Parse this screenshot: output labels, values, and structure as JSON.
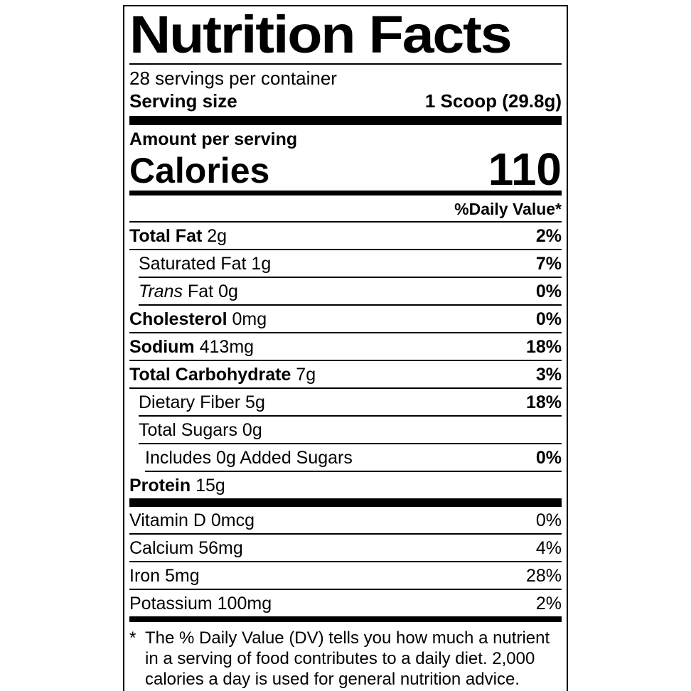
{
  "colors": {
    "text": "#000000",
    "background": "#ffffff",
    "rule": "#000000"
  },
  "label": {
    "title": "Nutrition Facts",
    "servings_per_container": "28 servings per container",
    "serving_size": {
      "label": "Serving size",
      "value": "1 Scoop (29.8g)"
    },
    "amount_per_serving": "Amount per serving",
    "calories": {
      "label": "Calories",
      "value": "110"
    },
    "daily_value_header": "%Daily Value*",
    "nutrients": [
      {
        "bold": "Total Fat",
        "italic": "",
        "regular": " 2g",
        "dv": "2%"
      },
      {
        "bold": "",
        "italic": "",
        "regular": "Saturated Fat 1g",
        "dv": "7%"
      },
      {
        "bold": "",
        "italic": "Trans",
        "regular": " Fat 0g",
        "dv": "0%"
      },
      {
        "bold": "Cholesterol",
        "italic": "",
        "regular": " 0mg",
        "dv": "0%"
      },
      {
        "bold": "Sodium",
        "italic": "",
        "regular": " 413mg",
        "dv": "18%"
      },
      {
        "bold": "Total Carbohydrate",
        "italic": "",
        "regular": " 7g",
        "dv": "3%"
      },
      {
        "bold": "",
        "italic": "",
        "regular": "Dietary Fiber 5g",
        "dv": "18%"
      },
      {
        "bold": "",
        "italic": "",
        "regular": "Total Sugars 0g",
        "dv": ""
      },
      {
        "bold": "",
        "italic": "",
        "regular": "Includes 0g Added Sugars",
        "dv": "0%"
      },
      {
        "bold": "Protein",
        "italic": "",
        "regular": " 15g",
        "dv": ""
      }
    ],
    "micronutrients": [
      {
        "name": "Vitamin D 0mcg",
        "dv": "0%"
      },
      {
        "name": "Calcium 56mg",
        "dv": "4%"
      },
      {
        "name": "Iron 5mg",
        "dv": "28%"
      },
      {
        "name": "Potassium 100mg",
        "dv": "2%"
      }
    ],
    "footnote_marker": "*",
    "footnote": "The % Daily Value (DV) tells you how much a nutrient in a serving of food contributes to a daily diet. 2,000 calories a day is used for general nutrition advice."
  }
}
